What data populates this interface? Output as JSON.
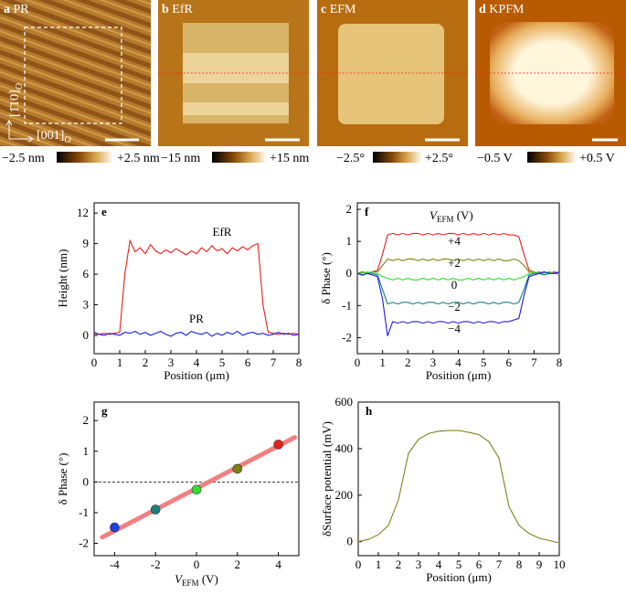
{
  "panels": [
    {
      "letter": "a",
      "title": "PR",
      "scale_min": "−2.5 nm",
      "scale_max": "+2.5 nm",
      "axes": [
        {
          "text": "[1̄10]",
          "sub": "O"
        },
        {
          "text": "[001]",
          "sub": "O"
        }
      ]
    },
    {
      "letter": "b",
      "title": "EfR",
      "scale_min": "−15 nm",
      "scale_max": "+15 nm"
    },
    {
      "letter": "c",
      "title": "EFM",
      "scale_min": "−2.5°",
      "scale_max": "+2.5°"
    },
    {
      "letter": "d",
      "title": "KPFM",
      "scale_min": "−0.5 V",
      "scale_max": "+0.5 V"
    }
  ],
  "chart_data": [
    {
      "type": "line",
      "letter": "e",
      "xlabel": "Position (μm)",
      "ylabel": "Height (nm)",
      "xlim": [
        0,
        8
      ],
      "xticks": [
        0,
        1,
        2,
        3,
        4,
        5,
        6,
        7,
        8
      ],
      "ylim": [
        -1.8,
        13
      ],
      "yticks": [
        0,
        3,
        6,
        9,
        12
      ],
      "x": [
        0,
        0.2,
        0.4,
        0.6,
        0.8,
        1.0,
        1.2,
        1.4,
        1.6,
        1.8,
        2.0,
        2.2,
        2.4,
        2.6,
        2.8,
        3.0,
        3.2,
        3.4,
        3.6,
        3.8,
        4.0,
        4.2,
        4.4,
        4.6,
        4.8,
        5.0,
        5.2,
        5.4,
        5.6,
        5.8,
        6.0,
        6.2,
        6.4,
        6.6,
        6.8,
        7.0,
        7.2,
        7.4,
        7.6,
        7.8,
        8.0
      ],
      "series": [
        {
          "name": "EfR",
          "color": "#e8201c",
          "style": "line",
          "values": [
            0.2,
            0.1,
            0.2,
            0.1,
            0.2,
            0.3,
            6.0,
            9.3,
            8.2,
            8.6,
            8.0,
            8.9,
            8.3,
            8.0,
            8.4,
            8.1,
            8.5,
            8.2,
            7.9,
            8.3,
            8.0,
            8.6,
            8.2,
            8.8,
            8.3,
            8.5,
            8.0,
            8.6,
            8.3,
            8.7,
            8.4,
            8.8,
            9.0,
            3.0,
            0.3,
            0.2,
            0.1,
            0.2,
            0.1,
            0.2,
            0.1
          ]
        },
        {
          "name": "PR",
          "color": "#1c1ce0",
          "style": "line",
          "values": [
            0.3,
            0.1,
            0.0,
            0.2,
            0.1,
            0.0,
            0.3,
            0.2,
            0.4,
            0.1,
            0.3,
            0.0,
            0.2,
            0.4,
            0.1,
            -0.1,
            0.2,
            0.3,
            0.0,
            0.4,
            0.2,
            0.1,
            0.3,
            -0.1,
            0.2,
            0.0,
            0.3,
            0.1,
            0.4,
            0.0,
            0.2,
            0.3,
            0.1,
            0.2,
            0.0,
            0.1,
            0.3,
            0.1,
            0.2,
            0.0,
            0.1
          ]
        }
      ]
    },
    {
      "type": "line",
      "letter": "f",
      "xlabel": "Position (μm)",
      "ylabel": "δ Phase (°)",
      "annotation": {
        "main": "V",
        "sub": "EFM",
        "rest": " (V)"
      },
      "xlim": [
        0,
        8
      ],
      "xticks": [
        0,
        1,
        2,
        3,
        4,
        5,
        6,
        7,
        8
      ],
      "ylim": [
        -2.5,
        2.2
      ],
      "yticks": [
        -2,
        -1,
        0,
        1,
        2
      ],
      "x": [
        0,
        0.2,
        0.4,
        0.6,
        0.8,
        1.0,
        1.2,
        1.4,
        1.6,
        1.8,
        2.0,
        2.2,
        2.4,
        2.6,
        2.8,
        3.0,
        3.2,
        3.4,
        3.6,
        3.8,
        4.0,
        4.2,
        4.4,
        4.6,
        4.8,
        5.0,
        5.2,
        5.4,
        5.6,
        5.8,
        6.0,
        6.2,
        6.4,
        6.6,
        6.8,
        7.0,
        7.2,
        7.4,
        7.6,
        7.8,
        8.0
      ],
      "series": [
        {
          "name": "+4",
          "color": "#e8201c",
          "style": "line",
          "values": [
            0,
            0.05,
            0,
            0.05,
            0.1,
            0.6,
            1.2,
            1.25,
            1.2,
            1.25,
            1.2,
            1.25,
            1.25,
            1.2,
            1.25,
            1.2,
            1.25,
            1.2,
            1.25,
            1.25,
            1.2,
            1.25,
            1.2,
            1.25,
            1.2,
            1.25,
            1.2,
            1.25,
            1.2,
            1.25,
            1.2,
            1.2,
            1.15,
            0.6,
            0.1,
            0.05,
            0,
            0.05,
            0,
            0.05,
            0
          ]
        },
        {
          "name": "+2",
          "color": "#808010",
          "style": "line",
          "values": [
            0,
            0.05,
            0,
            0.05,
            0.05,
            0.25,
            0.45,
            0.4,
            0.45,
            0.4,
            0.45,
            0.45,
            0.4,
            0.45,
            0.4,
            0.45,
            0.4,
            0.45,
            0.45,
            0.4,
            0.45,
            0.4,
            0.45,
            0.4,
            0.45,
            0.4,
            0.45,
            0.4,
            0.45,
            0.4,
            0.4,
            0.45,
            0.4,
            0.25,
            0.05,
            0,
            0.05,
            0,
            0.05,
            0,
            0
          ]
        },
        {
          "name": "0",
          "color": "#30e030",
          "style": "line",
          "values": [
            0,
            0,
            0.05,
            0,
            0,
            -0.1,
            -0.15,
            -0.2,
            -0.15,
            -0.2,
            -0.15,
            -0.2,
            -0.2,
            -0.15,
            -0.2,
            -0.15,
            -0.2,
            -0.15,
            -0.2,
            -0.15,
            -0.2,
            -0.2,
            -0.15,
            -0.2,
            -0.15,
            -0.2,
            -0.15,
            -0.2,
            -0.15,
            -0.2,
            -0.15,
            -0.2,
            -0.15,
            -0.1,
            0,
            0.05,
            0,
            0,
            0.05,
            0,
            0
          ]
        },
        {
          "name": "−2",
          "color": "#1a8080",
          "style": "line",
          "values": [
            0,
            -0.05,
            0,
            0,
            -0.05,
            -0.5,
            -0.95,
            -0.9,
            -0.95,
            -0.9,
            -0.9,
            -0.95,
            -0.9,
            -0.95,
            -0.9,
            -0.9,
            -0.95,
            -0.9,
            -0.95,
            -0.9,
            -0.9,
            -0.95,
            -0.9,
            -0.95,
            -0.9,
            -0.9,
            -0.95,
            -0.9,
            -0.95,
            -0.9,
            -0.9,
            -0.95,
            -0.9,
            -0.5,
            -0.05,
            0,
            0,
            -0.05,
            0,
            0,
            0
          ]
        },
        {
          "name": "−4",
          "color": "#1c1ce0",
          "style": "line",
          "values": [
            0,
            -0.05,
            0,
            -0.05,
            -0.1,
            -0.8,
            -1.95,
            -1.5,
            -1.55,
            -1.5,
            -1.55,
            -1.5,
            -1.5,
            -1.55,
            -1.5,
            -1.55,
            -1.5,
            -1.5,
            -1.55,
            -1.5,
            -1.55,
            -1.5,
            -1.5,
            -1.55,
            -1.5,
            -1.55,
            -1.5,
            -1.5,
            -1.55,
            -1.5,
            -1.5,
            -1.45,
            -1.4,
            -0.7,
            -0.1,
            -0.05,
            0,
            0.05,
            0,
            0,
            0.05
          ]
        }
      ]
    },
    {
      "type": "scatter",
      "letter": "g",
      "xlabel": {
        "main": "V",
        "sub": "EFM",
        "rest": " (V)"
      },
      "ylabel": "δ Phase (°)",
      "xlim": [
        -5,
        5
      ],
      "xticks": [
        -4,
        -2,
        0,
        2,
        4
      ],
      "ylim": [
        -2.4,
        2.6
      ],
      "yticks": [
        -2,
        -1,
        0,
        1,
        2
      ],
      "hline": 0,
      "series": [
        {
          "style": "thick-line",
          "color": "#f08080",
          "x": [
            -4.6,
            4.8
          ],
          "values": [
            -1.8,
            1.45
          ]
        },
        {
          "style": "markers",
          "colors": [
            "#2040e0",
            "#1a8080",
            "#30e030",
            "#808010",
            "#e8201c"
          ],
          "x": [
            -4,
            -2,
            0,
            2,
            4
          ],
          "values": [
            -1.48,
            -0.9,
            -0.25,
            0.43,
            1.22
          ]
        }
      ]
    },
    {
      "type": "line",
      "letter": "h",
      "xlabel": "Position (μm)",
      "ylabel": "δSurface potential (mV)",
      "xlim": [
        0,
        10
      ],
      "xticks": [
        0,
        1,
        2,
        3,
        4,
        5,
        6,
        7,
        8,
        9,
        10
      ],
      "ylim": [
        -60,
        600
      ],
      "yticks": [
        0,
        200,
        400,
        600
      ],
      "x": [
        0,
        0.5,
        1,
        1.5,
        2,
        2.5,
        3,
        3.5,
        4,
        4.5,
        5,
        5.5,
        6,
        6.5,
        7,
        7.5,
        8,
        8.5,
        9,
        9.5,
        10
      ],
      "series": [
        {
          "color": "#808020",
          "style": "line",
          "values": [
            0,
            10,
            30,
            70,
            180,
            380,
            440,
            465,
            475,
            478,
            478,
            470,
            460,
            430,
            360,
            150,
            70,
            35,
            15,
            5,
            -5
          ]
        }
      ]
    }
  ]
}
